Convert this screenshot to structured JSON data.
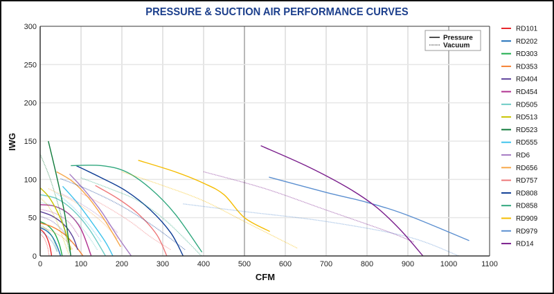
{
  "chart_data": {
    "type": "line",
    "title": "PRESSURE & SUCTION AIR PERFORMANCE CURVES",
    "xlabel": "CFM",
    "ylabel": "IWG",
    "xlim": [
      0,
      1100
    ],
    "ylim": [
      0,
      300
    ],
    "xticks": [
      0,
      100,
      200,
      300,
      400,
      500,
      600,
      700,
      800,
      900,
      1000,
      1100
    ],
    "yticks": [
      0,
      50,
      100,
      150,
      200,
      250,
      300
    ],
    "grid": true,
    "style_legend": {
      "placement": "top-right-inside",
      "items": [
        {
          "label": "Pressure",
          "dash": "solid"
        },
        {
          "label": "Vacuum",
          "dash": "dotted"
        }
      ]
    },
    "legend_placement": "right-outside",
    "series": [
      {
        "name": "RD101",
        "color": "#e8262b",
        "pressure": [
          [
            0,
            35
          ],
          [
            10,
            30
          ],
          [
            18,
            22
          ],
          [
            24,
            12
          ],
          [
            28,
            0
          ]
        ],
        "vacuum": [
          [
            0,
            29
          ],
          [
            10,
            23
          ],
          [
            18,
            12
          ],
          [
            22,
            0
          ]
        ]
      },
      {
        "name": "RD202",
        "color": "#1f6fb8",
        "pressure": [
          [
            0,
            37
          ],
          [
            15,
            33
          ],
          [
            30,
            25
          ],
          [
            42,
            12
          ],
          [
            50,
            0
          ]
        ],
        "vacuum": [
          [
            0,
            32
          ],
          [
            15,
            27
          ],
          [
            30,
            18
          ],
          [
            42,
            5
          ]
        ]
      },
      {
        "name": "RD303",
        "color": "#1aab4a",
        "pressure": [
          [
            0,
            45
          ],
          [
            18,
            40
          ],
          [
            35,
            30
          ],
          [
            47,
            15
          ],
          [
            54,
            0
          ]
        ],
        "vacuum": [
          [
            0,
            40
          ],
          [
            18,
            34
          ],
          [
            32,
            22
          ],
          [
            42,
            6
          ]
        ]
      },
      {
        "name": "RD353",
        "color": "#f58233",
        "pressure": [
          [
            0,
            43
          ],
          [
            30,
            38
          ],
          [
            60,
            28
          ],
          [
            85,
            14
          ],
          [
            105,
            0
          ]
        ],
        "vacuum": [
          [
            0,
            38
          ],
          [
            30,
            32
          ],
          [
            60,
            22
          ],
          [
            80,
            8
          ]
        ]
      },
      {
        "name": "RD404",
        "color": "#5b3f99",
        "pressure": [
          [
            0,
            58
          ],
          [
            30,
            52
          ],
          [
            60,
            40
          ],
          [
            80,
            25
          ],
          [
            92,
            8
          ]
        ],
        "vacuum": [
          [
            0,
            52
          ],
          [
            30,
            45
          ],
          [
            55,
            33
          ],
          [
            75,
            18
          ]
        ]
      },
      {
        "name": "RD454",
        "color": "#b0308f",
        "pressure": [
          [
            0,
            67
          ],
          [
            35,
            65
          ],
          [
            70,
            55
          ],
          [
            100,
            35
          ],
          [
            125,
            0
          ]
        ],
        "vacuum": [
          [
            0,
            61
          ],
          [
            35,
            56
          ],
          [
            70,
            44
          ],
          [
            95,
            25
          ]
        ]
      },
      {
        "name": "RD505",
        "color": "#6ccbc4",
        "pressure": [
          [
            0,
            80
          ],
          [
            40,
            75
          ],
          [
            80,
            60
          ],
          [
            120,
            35
          ],
          [
            160,
            0
          ]
        ],
        "vacuum": [
          [
            0,
            70
          ],
          [
            40,
            64
          ],
          [
            80,
            50
          ],
          [
            115,
            28
          ],
          [
            140,
            8
          ]
        ]
      },
      {
        "name": "RD513",
        "color": "#c8c400",
        "pressure": [
          [
            0,
            89
          ],
          [
            20,
            78
          ],
          [
            40,
            60
          ],
          [
            60,
            35
          ],
          [
            75,
            8
          ]
        ],
        "vacuum": [
          [
            0,
            76
          ],
          [
            20,
            65
          ],
          [
            40,
            46
          ],
          [
            58,
            20
          ],
          [
            70,
            2
          ]
        ]
      },
      {
        "name": "RD523",
        "color": "#0f7a3a",
        "pressure": [
          [
            20,
            150
          ],
          [
            40,
            105
          ],
          [
            60,
            55
          ],
          [
            75,
            0
          ]
        ],
        "vacuum": [
          [
            0,
            133
          ],
          [
            25,
            100
          ],
          [
            50,
            55
          ],
          [
            72,
            5
          ]
        ]
      },
      {
        "name": "RD555",
        "color": "#3fc3ec",
        "pressure": [
          [
            55,
            91
          ],
          [
            90,
            70
          ],
          [
            125,
            45
          ],
          [
            160,
            18
          ],
          [
            178,
            0
          ]
        ],
        "vacuum": [
          [
            40,
            82
          ],
          [
            80,
            64
          ],
          [
            120,
            40
          ],
          [
            150,
            18
          ]
        ]
      },
      {
        "name": "RD6",
        "color": "#a77dc4",
        "pressure": [
          [
            72,
            107
          ],
          [
            110,
            85
          ],
          [
            150,
            58
          ],
          [
            190,
            25
          ],
          [
            223,
            0
          ]
        ],
        "vacuum": [
          [
            50,
            82
          ],
          [
            100,
            68
          ],
          [
            150,
            50
          ],
          [
            190,
            30
          ]
        ]
      },
      {
        "name": "RD656",
        "color": "#f7a84a",
        "pressure": [
          [
            40,
            110
          ],
          [
            80,
            97
          ],
          [
            120,
            75
          ],
          [
            160,
            45
          ],
          [
            197,
            12
          ]
        ],
        "vacuum": [
          [
            20,
            88
          ],
          [
            70,
            75
          ],
          [
            120,
            58
          ],
          [
            160,
            40
          ],
          [
            190,
            22
          ]
        ]
      },
      {
        "name": "RD757",
        "color": "#ee7779",
        "pressure": [
          [
            135,
            92
          ],
          [
            190,
            75
          ],
          [
            240,
            55
          ],
          [
            285,
            28
          ],
          [
            310,
            0
          ]
        ],
        "vacuum": [
          [
            100,
            82
          ],
          [
            160,
            65
          ],
          [
            220,
            45
          ],
          [
            270,
            25
          ],
          [
            320,
            8
          ]
        ]
      },
      {
        "name": "RD808",
        "color": "#0c3b94",
        "pressure": [
          [
            88,
            118
          ],
          [
            150,
            102
          ],
          [
            210,
            85
          ],
          [
            270,
            60
          ],
          [
            320,
            30
          ],
          [
            350,
            0
          ]
        ],
        "vacuum": [
          [
            50,
            101
          ],
          [
            120,
            86
          ],
          [
            200,
            65
          ],
          [
            280,
            38
          ],
          [
            355,
            8
          ]
        ]
      },
      {
        "name": "RD858",
        "color": "#2fa77d",
        "pressure": [
          [
            75,
            118
          ],
          [
            150,
            118
          ],
          [
            210,
            110
          ],
          [
            270,
            88
          ],
          [
            330,
            55
          ],
          [
            396,
            5
          ]
        ],
        "vacuum": [
          [
            100,
            102
          ],
          [
            170,
            88
          ],
          [
            240,
            72
          ],
          [
            310,
            45
          ],
          [
            395,
            0
          ]
        ]
      },
      {
        "name": "RD909",
        "color": "#f5bc00",
        "pressure": [
          [
            240,
            125
          ],
          [
            330,
            110
          ],
          [
            400,
            95
          ],
          [
            450,
            80
          ],
          [
            500,
            50
          ],
          [
            562,
            32
          ]
        ],
        "vacuum": [
          [
            200,
            110
          ],
          [
            300,
            92
          ],
          [
            400,
            72
          ],
          [
            500,
            45
          ],
          [
            630,
            10
          ]
        ]
      },
      {
        "name": "RD979",
        "color": "#5b8fd0",
        "pressure": [
          [
            560,
            103
          ],
          [
            700,
            83
          ],
          [
            800,
            70
          ],
          [
            900,
            53
          ],
          [
            1050,
            20
          ]
        ],
        "vacuum": [
          [
            350,
            68
          ],
          [
            500,
            58
          ],
          [
            700,
            45
          ],
          [
            900,
            25
          ],
          [
            1025,
            0
          ]
        ]
      },
      {
        "name": "RD14",
        "color": "#7a1e8c",
        "pressure": [
          [
            540,
            144
          ],
          [
            650,
            118
          ],
          [
            750,
            90
          ],
          [
            820,
            65
          ],
          [
            880,
            35
          ],
          [
            937,
            0
          ]
        ],
        "vacuum": [
          [
            400,
            110
          ],
          [
            550,
            88
          ],
          [
            700,
            60
          ],
          [
            850,
            32
          ],
          [
            915,
            18
          ]
        ]
      }
    ]
  }
}
